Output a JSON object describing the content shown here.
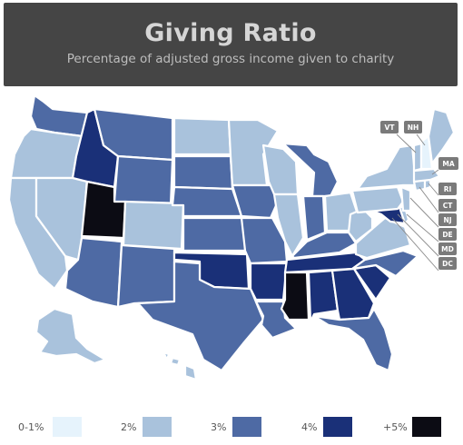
{
  "header": {
    "title": "Giving Ratio",
    "subtitle": "Percentage of adjusted gross income given to charity"
  },
  "colors": {
    "header_bg": "#454545",
    "tier_0_1": "#e6f3fc",
    "tier_2": "#a9c2dc",
    "tier_3": "#4e6aa4",
    "tier_4": "#1a3078",
    "tier_5": "#0c0c14",
    "border": "#ffffff",
    "tag_bg": "#7a7a7a"
  },
  "state_tags": [
    "VT",
    "NH",
    "MA",
    "RI",
    "CT",
    "NJ",
    "DE",
    "MD",
    "DC"
  ],
  "legend": [
    {
      "label": "0-1%",
      "tier": "tier_0_1"
    },
    {
      "label": "2%",
      "tier": "tier_2"
    },
    {
      "label": "3%",
      "tier": "tier_3"
    },
    {
      "label": "4%",
      "tier": "tier_4"
    },
    {
      "label": "+5%",
      "tier": "tier_5"
    }
  ],
  "states": {
    "WA": "tier_3",
    "OR": "tier_2",
    "CA": "tier_2",
    "NV": "tier_2",
    "ID": "tier_4",
    "MT": "tier_3",
    "WY": "tier_3",
    "UT": "tier_5",
    "CO": "tier_2",
    "AZ": "tier_3",
    "NM": "tier_3",
    "ND": "tier_2",
    "SD": "tier_3",
    "NE": "tier_3",
    "KS": "tier_3",
    "OK": "tier_4",
    "TX": "tier_3",
    "MN": "tier_2",
    "IA": "tier_3",
    "MO": "tier_3",
    "AR": "tier_4",
    "LA": "tier_3",
    "WI": "tier_2",
    "IL": "tier_2",
    "MI": "tier_3",
    "IN": "tier_3",
    "OH": "tier_2",
    "KY": "tier_3",
    "TN": "tier_4",
    "MS": "tier_5",
    "AL": "tier_4",
    "GA": "tier_4",
    "FL": "tier_3",
    "SC": "tier_4",
    "NC": "tier_3",
    "VA": "tier_2",
    "WV": "tier_2",
    "MD": "tier_4",
    "DE": "tier_2",
    "PA": "tier_2",
    "NY": "tier_2",
    "NJ": "tier_2",
    "CT": "tier_2",
    "RI": "tier_2",
    "MA": "tier_2",
    "VT": "tier_2",
    "NH": "tier_0_1",
    "ME": "tier_2",
    "AK": "tier_2",
    "HI": "tier_2"
  }
}
